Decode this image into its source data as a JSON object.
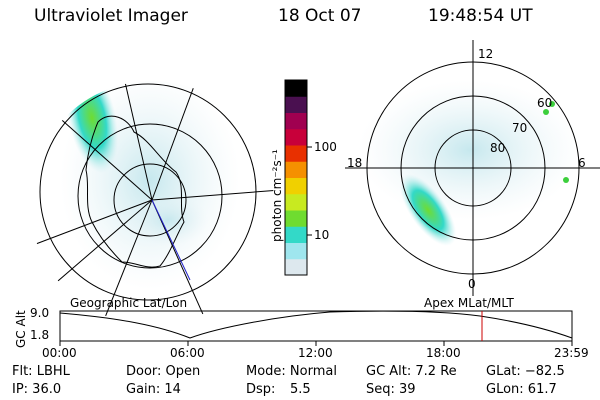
{
  "header": {
    "title": "Ultraviolet Imager",
    "date": "18 Oct 07",
    "time": "19:48:54 UT"
  },
  "left_panel": {
    "caption": "Geographic Lat/Lon"
  },
  "right_panel": {
    "caption": "Apex MLat/MLT",
    "mlt_labels": {
      "top": "12",
      "left": "18",
      "right": "6",
      "bottom": "0"
    },
    "lat_labels": [
      "60",
      "70",
      "80"
    ]
  },
  "colorbar": {
    "unit": "photon cm⁻²s⁻¹",
    "ticks": [
      "100",
      "10"
    ],
    "colors": [
      "#dde8ee",
      "#9fe6ee",
      "#33d9c8",
      "#6fdc30",
      "#c8ea20",
      "#f0d000",
      "#f59000",
      "#e83000",
      "#c8003a",
      "#a00050",
      "#4a1050",
      "#000000"
    ]
  },
  "timeline": {
    "ylabel": "GC Alt",
    "yticks": [
      "9.0",
      "1.8"
    ],
    "xticks": [
      "00:00",
      "06:00",
      "12:00",
      "18:00",
      "23:59"
    ],
    "current_marker_color": "#cc0000"
  },
  "status": {
    "row1": {
      "flt": "Flt: LBHL",
      "door": "Door: Open",
      "mode": "Mode: Normal",
      "gc_alt": "GC Alt: 7.2 Re",
      "glat": "GLat: −82.5"
    },
    "row2": {
      "ip": "IP: 36.0",
      "gain": "Gain: 14",
      "dsp_label": "Dsp:",
      "dsp_value": "5.5",
      "seq": "Seq: 39",
      "glon": "GLon: 61.7"
    }
  }
}
